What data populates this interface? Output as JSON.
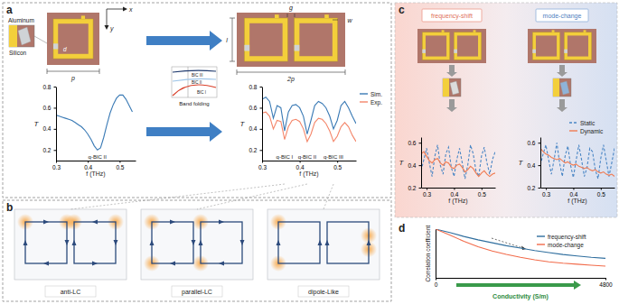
{
  "chart_data": [
    {
      "type": "line",
      "x_label": "f (THz)",
      "y_label": "T",
      "x": [
        0.3,
        0.31,
        0.32,
        0.33,
        0.34,
        0.35,
        0.36,
        0.37,
        0.38,
        0.39,
        0.4,
        0.41,
        0.42,
        0.43,
        0.44,
        0.45,
        0.46,
        0.47,
        0.48,
        0.49,
        0.5,
        0.51,
        0.52,
        0.53,
        0.54
      ],
      "series": [
        {
          "color": "#3a7ab5",
          "values": [
            0.53,
            0.52,
            0.51,
            0.5,
            0.49,
            0.48,
            0.46,
            0.44,
            0.42,
            0.39,
            0.35,
            0.3,
            0.24,
            0.2,
            0.22,
            0.32,
            0.44,
            0.55,
            0.63,
            0.69,
            0.72,
            0.72,
            0.68,
            0.62,
            0.56
          ]
        }
      ],
      "xlim": [
        0.3,
        0.55
      ],
      "xticks": [
        0.3,
        0.4,
        0.5
      ],
      "ylim": [
        0.1,
        0.8
      ],
      "yticks": [
        0.2,
        0.4,
        0.6,
        0.8
      ],
      "annotations": [
        {
          "text": "q-BIC II",
          "x": 0.43
        }
      ]
    },
    {
      "type": "line",
      "x_label": "f (THz)",
      "y_label": "T",
      "x": [
        0.3,
        0.31,
        0.32,
        0.33,
        0.34,
        0.35,
        0.36,
        0.37,
        0.38,
        0.39,
        0.4,
        0.41,
        0.42,
        0.43,
        0.44,
        0.45,
        0.46,
        0.47,
        0.48,
        0.49,
        0.5,
        0.51,
        0.52,
        0.53,
        0.54,
        0.55
      ],
      "series": [
        {
          "name": "Sim.",
          "color": "#3a7ab5",
          "values": [
            0.68,
            0.7,
            0.66,
            0.5,
            0.62,
            0.6,
            0.38,
            0.56,
            0.62,
            0.63,
            0.6,
            0.52,
            0.35,
            0.48,
            0.62,
            0.66,
            0.64,
            0.6,
            0.52,
            0.4,
            0.48,
            0.62,
            0.66,
            0.6,
            0.52,
            0.45
          ]
        },
        {
          "name": "Exp.",
          "color": "#f4866a",
          "values": [
            0.55,
            0.56,
            0.52,
            0.4,
            0.48,
            0.47,
            0.3,
            0.42,
            0.48,
            0.49,
            0.47,
            0.4,
            0.28,
            0.35,
            0.46,
            0.5,
            0.49,
            0.45,
            0.38,
            0.28,
            0.33,
            0.42,
            0.46,
            0.42,
            0.34,
            0.28
          ]
        }
      ],
      "xlim": [
        0.3,
        0.55
      ],
      "xticks": [
        0.3,
        0.4,
        0.5
      ],
      "ylim": [
        0.1,
        0.8
      ],
      "yticks": [
        0.2,
        0.4,
        0.6,
        0.8
      ],
      "legend": "right",
      "annotations": [
        {
          "text": "q-BIC I",
          "x": 0.36
        },
        {
          "text": "q-BIC II",
          "x": 0.42
        },
        {
          "text": "q-BIC III",
          "x": 0.49
        }
      ]
    },
    {
      "type": "line",
      "x_label": "f (THz)",
      "y_label": "T",
      "x": [
        0.28,
        0.29,
        0.3,
        0.31,
        0.32,
        0.33,
        0.34,
        0.35,
        0.36,
        0.37,
        0.38,
        0.39,
        0.4,
        0.41,
        0.42,
        0.43,
        0.44,
        0.45,
        0.46,
        0.47,
        0.48,
        0.49,
        0.5,
        0.51,
        0.52,
        0.53,
        0.54,
        0.55
      ],
      "series": [
        {
          "color": "#4a86c5",
          "line_style": "dashed",
          "values": [
            0.35,
            0.45,
            0.55,
            0.42,
            0.3,
            0.48,
            0.58,
            0.4,
            0.32,
            0.5,
            0.56,
            0.38,
            0.3,
            0.45,
            0.55,
            0.42,
            0.28,
            0.4,
            0.58,
            0.5,
            0.35,
            0.3,
            0.48,
            0.56,
            0.42,
            0.32,
            0.45,
            0.52
          ]
        },
        {
          "color": "#f07b52",
          "line_style": "solid",
          "values": [
            0.5,
            0.52,
            0.48,
            0.44,
            0.42,
            0.45,
            0.46,
            0.42,
            0.4,
            0.43,
            0.42,
            0.38,
            0.37,
            0.4,
            0.41,
            0.38,
            0.34,
            0.36,
            0.39,
            0.37,
            0.33,
            0.3,
            0.33,
            0.35,
            0.32,
            0.3,
            0.32,
            0.33
          ]
        }
      ],
      "xlim": [
        0.28,
        0.55
      ],
      "xticks": [
        0.3,
        0.4,
        0.5
      ],
      "ylim": [
        0.2,
        0.65
      ],
      "yticks": [
        0.2,
        0.4,
        0.6
      ]
    },
    {
      "type": "line",
      "x_label": "f (THz)",
      "y_label": "T",
      "x": [
        0.28,
        0.29,
        0.3,
        0.31,
        0.32,
        0.33,
        0.34,
        0.35,
        0.36,
        0.37,
        0.38,
        0.39,
        0.4,
        0.41,
        0.42,
        0.43,
        0.44,
        0.45,
        0.46,
        0.47,
        0.48,
        0.49,
        0.5,
        0.51,
        0.52,
        0.53,
        0.54,
        0.55
      ],
      "series": [
        {
          "name": "Static",
          "color": "#4a86c5",
          "line_style": "dashed",
          "values": [
            0.4,
            0.5,
            0.58,
            0.45,
            0.32,
            0.45,
            0.6,
            0.42,
            0.3,
            0.48,
            0.57,
            0.4,
            0.29,
            0.44,
            0.58,
            0.45,
            0.3,
            0.38,
            0.55,
            0.52,
            0.36,
            0.28,
            0.46,
            0.58,
            0.44,
            0.3,
            0.42,
            0.55
          ]
        },
        {
          "name": "Dynamic",
          "color": "#f07b52",
          "line_style": "solid",
          "values": [
            0.55,
            0.52,
            0.5,
            0.49,
            0.47,
            0.46,
            0.45,
            0.46,
            0.44,
            0.42,
            0.43,
            0.41,
            0.4,
            0.41,
            0.39,
            0.38,
            0.37,
            0.38,
            0.36,
            0.35,
            0.36,
            0.34,
            0.33,
            0.34,
            0.32,
            0.31,
            0.32,
            0.3
          ]
        }
      ],
      "xlim": [
        0.28,
        0.55
      ],
      "xticks": [
        0.3,
        0.4,
        0.5
      ],
      "ylim": [
        0.2,
        0.65
      ],
      "yticks": [
        0.2,
        0.4,
        0.6
      ],
      "legend": "top"
    },
    {
      "type": "line",
      "x_label": "Conductivity (S/m)",
      "y_label": "Correlation coefficient",
      "x": [
        0,
        400,
        800,
        1200,
        1600,
        2000,
        2400,
        2800,
        3200,
        3600,
        4000,
        4400,
        4800
      ],
      "series": [
        {
          "name": "frequency-shift",
          "color": "#2f6e9e",
          "values": [
            1.0,
            0.93,
            0.85,
            0.78,
            0.72,
            0.66,
            0.61,
            0.56,
            0.52,
            0.48,
            0.45,
            0.42,
            0.4
          ]
        },
        {
          "name": "mode-change",
          "color": "#f26b4a",
          "values": [
            1.0,
            0.88,
            0.75,
            0.64,
            0.55,
            0.48,
            0.42,
            0.37,
            0.33,
            0.3,
            0.28,
            0.26,
            0.24
          ]
        }
      ],
      "xlim": [
        0,
        4800
      ],
      "xticks": [
        0,
        4800
      ],
      "ylim": [
        0,
        1
      ],
      "tick_labels": "x",
      "legend": "top-right"
    }
  ],
  "diagram": {
    "panel_labels": [
      "a",
      "b",
      "c",
      "d"
    ],
    "axes_labels": [
      "x",
      "y"
    ],
    "materials": [
      "Aluminum",
      "Silicon"
    ],
    "dimensions": [
      "p",
      "d",
      "2p",
      "l",
      "g",
      "w"
    ],
    "band_folding": {
      "title": "Band folding",
      "bands": [
        "BIC III",
        "BIC II",
        "BIC I"
      ]
    },
    "modes": [
      "anti-LC",
      "parallel-LC",
      "dipole-Like"
    ],
    "tuning": [
      "frequency-shift",
      "mode-change"
    ]
  }
}
